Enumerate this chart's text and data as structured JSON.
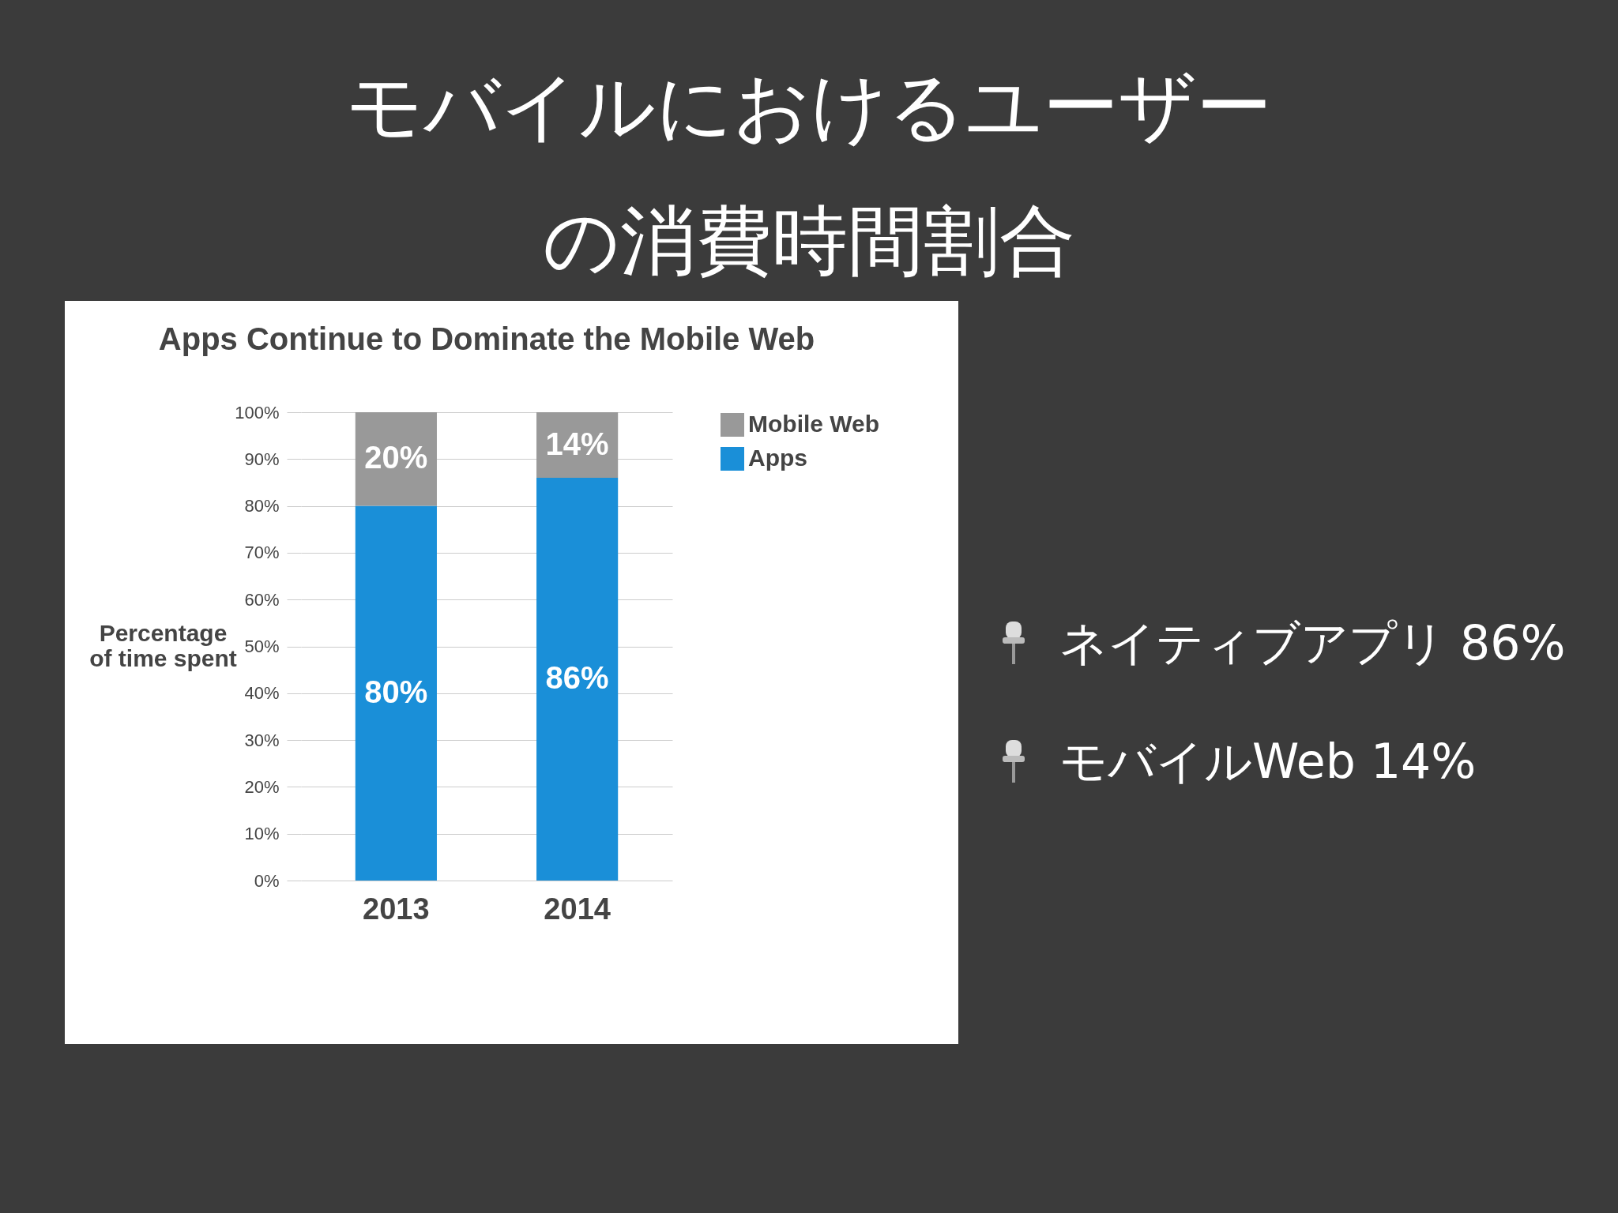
{
  "chart_data": {
    "type": "bar",
    "title": "モバイルにおけるユーザーの消費時間割合",
    "subtitle": "Apps Continue to Dominate the Mobile Web",
    "ylabel": "Percentage of time spent",
    "categories": [
      "2013",
      "2014"
    ],
    "stacked": true,
    "series": [
      {
        "name": "Apps",
        "color": "#1a8fd8",
        "values": [
          80,
          86
        ],
        "value_labels": [
          "80%",
          "86%"
        ]
      },
      {
        "name": "Mobile Web",
        "color": "#999999",
        "values": [
          20,
          14
        ],
        "value_labels": [
          "20%",
          "14%"
        ]
      }
    ],
    "ylim": [
      0,
      100
    ],
    "yticks": [
      {
        "value": 0,
        "label": "0%"
      },
      {
        "value": 10,
        "label": "10%"
      },
      {
        "value": 20,
        "label": "20%"
      },
      {
        "value": 30,
        "label": "30%"
      },
      {
        "value": 40,
        "label": "40%"
      },
      {
        "value": 50,
        "label": "50%"
      },
      {
        "value": 60,
        "label": "60%"
      },
      {
        "value": 70,
        "label": "70%"
      },
      {
        "value": 80,
        "label": "80%"
      },
      {
        "value": 90,
        "label": "90%"
      },
      {
        "value": 100,
        "label": "100%"
      }
    ],
    "grid": "y",
    "legend": "right",
    "annotations": [
      "ネイティブアプリ 86%",
      "モバイルWeb 14%"
    ]
  }
}
